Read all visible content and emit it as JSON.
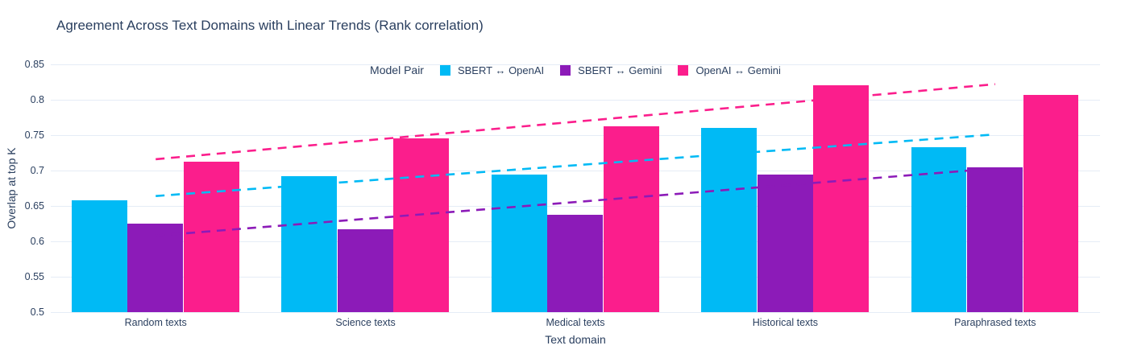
{
  "chart_data": {
    "type": "bar",
    "bar_mode": "group",
    "title": "Agreement Across Text Domains with Linear Trends (Rank correlation)",
    "xlabel": "Text domain",
    "ylabel": "Overlap at top K",
    "categories": [
      "Random texts",
      "Science texts",
      "Medical texts",
      "Historical texts",
      "Paraphrased texts"
    ],
    "series": [
      {
        "name": "SBERT ↔ OpenAI",
        "color": "#00baf5",
        "values": [
          0.658,
          0.692,
          0.694,
          0.76,
          0.733
        ],
        "trend_line": {
          "style": "dashed",
          "start_value": 0.664,
          "end_value": 0.751
        }
      },
      {
        "name": "SBERT ↔ Gemini",
        "color": "#8c1bb8",
        "values": [
          0.625,
          0.617,
          0.638,
          0.694,
          0.705
        ],
        "trend_line": {
          "style": "dashed",
          "start_value": 0.608,
          "end_value": 0.703
        }
      },
      {
        "name": "OpenAI ↔ Gemini",
        "color": "#fb1e8c",
        "values": [
          0.712,
          0.745,
          0.763,
          0.82,
          0.807
        ],
        "trend_line": {
          "style": "dashed",
          "start_value": 0.716,
          "end_value": 0.822
        }
      }
    ],
    "ylim": [
      0.5,
      0.85
    ],
    "yticks": [
      "0.5",
      "0.55",
      "0.6",
      "0.65",
      "0.7",
      "0.75",
      "0.8",
      "0.85"
    ],
    "grid": true,
    "legend_position": "top-center"
  },
  "legend": {
    "title": "Model Pair",
    "items": [
      {
        "label": "SBERT ↔ OpenAI",
        "color": "#00baf5"
      },
      {
        "label": "SBERT ↔ Gemini",
        "color": "#8c1bb8"
      },
      {
        "label": "OpenAI ↔ Gemini",
        "color": "#fb1e8c"
      }
    ]
  },
  "colors": {
    "text": "#2a3f5f",
    "gridline": "#e5ecf6",
    "background": "#ffffff"
  }
}
